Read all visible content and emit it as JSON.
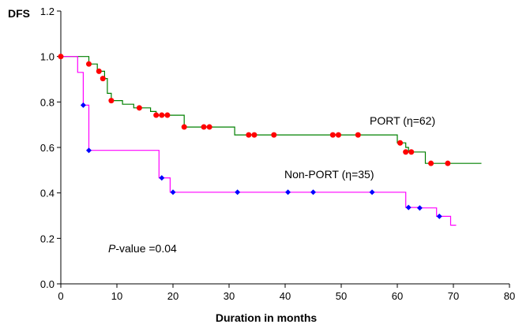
{
  "chart_data": {
    "type": "line",
    "title": "",
    "xlabel": "Duration in months",
    "ylabel": "DFS",
    "xlim": [
      0,
      80
    ],
    "ylim": [
      0,
      1.2
    ],
    "x_ticks": [
      0,
      10,
      20,
      30,
      40,
      50,
      60,
      70,
      80
    ],
    "x_tick_labels": [
      "0",
      "10",
      "20",
      "30",
      "40",
      "50",
      "60",
      "70",
      "80"
    ],
    "y_ticks": [
      0.0,
      0.2,
      0.4,
      0.6,
      0.8,
      1.0,
      1.2
    ],
    "y_tick_labels": [
      "0.0",
      "0.2",
      "0.4",
      "0.6",
      "0.8",
      "1.0",
      "1.2"
    ],
    "grid": false,
    "legend": "inline labels",
    "annotation": {
      "italic": "P",
      "text": "-value =0.04"
    },
    "series": [
      {
        "name": "PORT (η=62)",
        "color": "#008000",
        "marker_color": "#ff0000",
        "marker": "circle",
        "steps": [
          [
            0,
            1.0
          ],
          [
            5,
            1.0
          ],
          [
            5,
            0.967
          ],
          [
            6.5,
            0.967
          ],
          [
            6.5,
            0.935
          ],
          [
            7.8,
            0.935
          ],
          [
            7.8,
            0.903
          ],
          [
            8.3,
            0.903
          ],
          [
            8.3,
            0.838
          ],
          [
            9,
            0.838
          ],
          [
            9,
            0.806
          ],
          [
            11,
            0.806
          ],
          [
            11,
            0.79
          ],
          [
            13,
            0.79
          ],
          [
            13,
            0.774
          ],
          [
            16,
            0.774
          ],
          [
            16,
            0.758
          ],
          [
            17,
            0.758
          ],
          [
            17,
            0.742
          ],
          [
            22,
            0.742
          ],
          [
            22,
            0.69
          ],
          [
            31,
            0.69
          ],
          [
            31,
            0.655
          ],
          [
            60,
            0.655
          ],
          [
            60,
            0.62
          ],
          [
            61.5,
            0.62
          ],
          [
            61.5,
            0.6
          ],
          [
            62,
            0.6
          ],
          [
            62,
            0.58
          ],
          [
            65,
            0.58
          ],
          [
            65,
            0.53
          ],
          [
            75,
            0.53
          ]
        ],
        "censored": [
          [
            0,
            1.0
          ],
          [
            5,
            0.967
          ],
          [
            6.8,
            0.935
          ],
          [
            7.5,
            0.903
          ],
          [
            9,
            0.806
          ],
          [
            14,
            0.774
          ],
          [
            17,
            0.742
          ],
          [
            18,
            0.742
          ],
          [
            19,
            0.742
          ],
          [
            22,
            0.69
          ],
          [
            25.5,
            0.69
          ],
          [
            26.5,
            0.69
          ],
          [
            33.5,
            0.655
          ],
          [
            34.5,
            0.655
          ],
          [
            38,
            0.655
          ],
          [
            48.5,
            0.655
          ],
          [
            49.5,
            0.655
          ],
          [
            53,
            0.655
          ],
          [
            60.5,
            0.62
          ],
          [
            61.5,
            0.58
          ],
          [
            62.5,
            0.58
          ],
          [
            66,
            0.53
          ],
          [
            69,
            0.53
          ]
        ]
      },
      {
        "name": "Non-PORT (η=35)",
        "color": "#ff00ff",
        "marker_color": "#0000ff",
        "marker": "diamond",
        "steps": [
          [
            0,
            1.0
          ],
          [
            3,
            1.0
          ],
          [
            3,
            0.93
          ],
          [
            4,
            0.93
          ],
          [
            4,
            0.786
          ],
          [
            5,
            0.786
          ],
          [
            5,
            0.587
          ],
          [
            17.5,
            0.587
          ],
          [
            17.5,
            0.466
          ],
          [
            19.5,
            0.466
          ],
          [
            19.5,
            0.403
          ],
          [
            61.5,
            0.403
          ],
          [
            61.5,
            0.336
          ],
          [
            64,
            0.336
          ],
          [
            64,
            0.334
          ],
          [
            67,
            0.334
          ],
          [
            67,
            0.297
          ],
          [
            69.5,
            0.297
          ],
          [
            69.5,
            0.258
          ],
          [
            70.5,
            0.258
          ]
        ],
        "censored": [
          [
            4,
            0.786
          ],
          [
            5,
            0.587
          ],
          [
            18,
            0.466
          ],
          [
            20,
            0.403
          ],
          [
            31.5,
            0.403
          ],
          [
            40.5,
            0.403
          ],
          [
            45,
            0.403
          ],
          [
            55.5,
            0.403
          ],
          [
            62,
            0.336
          ],
          [
            64,
            0.334
          ],
          [
            67.5,
            0.297
          ]
        ]
      }
    ]
  }
}
